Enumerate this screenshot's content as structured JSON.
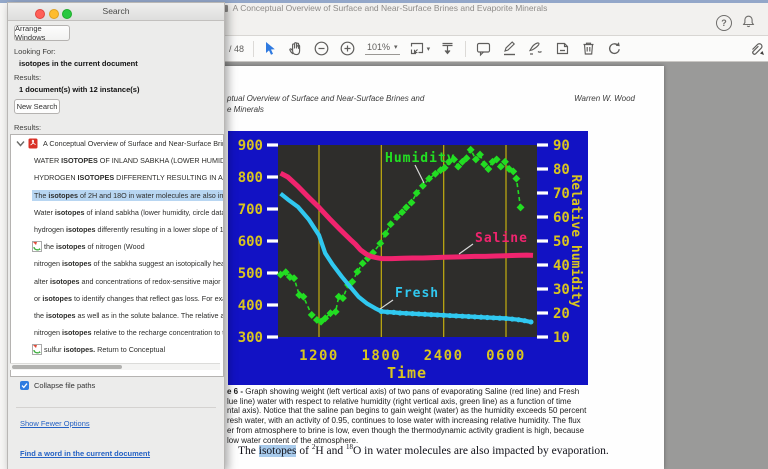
{
  "window": {
    "title": "A Conceptual Overview of Surface and Near-Surface Brines and Evaporite Minerals",
    "toolbar": {
      "page_indicator": "/ 48",
      "zoom_level": "101%"
    }
  },
  "search_panel": {
    "title": "Search",
    "arrange_button": "Arrange Windows",
    "looking_for_label": "Looking For:",
    "looking_for_value": "isotopes in the current document",
    "results_label": "Results:",
    "results_summary": "1 document(s) with 12 instance(s)",
    "new_search_button": "New Search",
    "results_list_label": "Results:",
    "document_result": "A Conceptual Overview of Surface and Near-Surface Brines and",
    "results": [
      {
        "pre": "WATER ",
        "match": "ISOTOPES",
        "post": " OF INLAND SABKHA (LOWER HUMIDIT"
      },
      {
        "pre": "HYDROGEN ",
        "match": "ISOTOPES",
        "post": " DIFFERENTLY RESULTING IN A LO"
      },
      {
        "pre": "The ",
        "match": "isotopes",
        "post": " of 2H and 18O in water molecules are also imp",
        "selected": true
      },
      {
        "pre": "Water ",
        "match": "isotopes",
        "post": " of inland sabkha (lower humidity, circle data"
      },
      {
        "pre": "hydrogen ",
        "match": "isotopes",
        "post": " differently resulting in a lower slope of 1.6"
      },
      {
        "pre": "the ",
        "match": "isotopes",
        "post": " of nitrogen (Wood"
      },
      {
        "pre": "nitrogen ",
        "match": "isotopes",
        "post": " of the sabkha suggest an isotopically heav"
      },
      {
        "pre": "alter ",
        "match": "isotopes",
        "post": " and concentrations of redox-sensitive major e"
      },
      {
        "pre": "or ",
        "match": "isotopes",
        "post": " to identify changes that reflect gas loss. For exa"
      },
      {
        "pre": "the ",
        "match": "isotopes",
        "post": " as well as in the solute balance. The relative am"
      },
      {
        "pre": "nitrogen ",
        "match": "isotopes",
        "post": " relative to the recharge concentration to th"
      },
      {
        "pre": "sulfur ",
        "match": "isotopes.",
        "post": " Return to Conceptual"
      }
    ],
    "collapse_checkbox_label": "Collapse file paths",
    "show_fewer_link": "Show Fewer Options",
    "find_word_link": "Find a word in the current document"
  },
  "document": {
    "header_left_line1": "ptual Overview of Surface and Near-Surface Brines and",
    "header_left_line2": "e Minerals",
    "header_right": "Warren W. Wood",
    "caption": {
      "line1_bold": "e 6 -",
      "line1_rest": " Graph showing weight (left vertical axis) of two pans of evaporating Saline (red line) and Fresh",
      "lines": [
        "lue line) water with respect to relative humidity (right vertical axis, green line) as a function of time",
        "ntal axis). Notice that the saline pan begins to gain weight (water) as the humidity exceeds 50 percent",
        "resh water, with an activity of 0.95, continues to lose water with increasing relative humidity. The flux",
        "er from atmosphere to brine is low, even though the thermodynamic activity gradient is high, because",
        "low water content of the atmosphere."
      ]
    },
    "body_line": {
      "pre": "The ",
      "highlight": "isotopes",
      "seg2": " of ",
      "sup1": "2",
      "seg3": "H and ",
      "sup2": "18",
      "seg4": "O in water molecules are also impacted by evaporation."
    }
  },
  "chart_data": {
    "type": "line",
    "title": "",
    "x_axis": {
      "label": "Time",
      "ticks": [
        "1200",
        "1800",
        "2400",
        "0600"
      ],
      "tick_hours": [
        4,
        10,
        16,
        22
      ],
      "x_unit": "hours since 08:00 (1200=4, 1800=10, 2400=16, 0600=22)",
      "grid": "vertical yellow lines at each labeled time"
    },
    "y_left": {
      "label": "",
      "ticks": [
        300,
        400,
        500,
        600,
        700,
        800,
        900
      ],
      "range": [
        300,
        900
      ]
    },
    "y_right": {
      "label": "Relative humidity",
      "ticks": [
        10,
        20,
        30,
        40,
        50,
        60,
        70,
        80,
        90
      ],
      "range": [
        10,
        90
      ]
    },
    "colors": {
      "background": "#1212c4",
      "plot": "#2e2d2b",
      "axis_text": "#d9c51f",
      "grid": "#b8a512",
      "tick": "#ffffff",
      "saline": "#f0246e",
      "fresh": "#30c8f0",
      "humidity": "#22dd22",
      "callout_line": "#d8d8d8"
    },
    "series": [
      {
        "name": "Saline",
        "axis": "left",
        "style": "thick-line",
        "points": [
          [
            0.3,
            812
          ],
          [
            1,
            800
          ],
          [
            2,
            770
          ],
          [
            3,
            737
          ],
          [
            4,
            705
          ],
          [
            5,
            670
          ],
          [
            6,
            637
          ],
          [
            7,
            605
          ],
          [
            7.5,
            590
          ],
          [
            8,
            572
          ],
          [
            8.5,
            560
          ],
          [
            9,
            552
          ],
          [
            9.5,
            548
          ],
          [
            10,
            545
          ],
          [
            11,
            545
          ],
          [
            12,
            546
          ],
          [
            13,
            547
          ],
          [
            14,
            547
          ],
          [
            15,
            548
          ],
          [
            16,
            549
          ],
          [
            17,
            550
          ],
          [
            18,
            551
          ],
          [
            19,
            552
          ],
          [
            20,
            552
          ],
          [
            21,
            553
          ],
          [
            22,
            554
          ],
          [
            23,
            555
          ],
          [
            24,
            556
          ],
          [
            24.6,
            555
          ]
        ]
      },
      {
        "name": "Fresh",
        "axis": "left",
        "style": "thick-line-with-dots",
        "points": [
          [
            0.3,
            748
          ],
          [
            1,
            730
          ],
          [
            2,
            706
          ],
          [
            3,
            668
          ],
          [
            4,
            618
          ],
          [
            4.6,
            562
          ],
          [
            5.3,
            527
          ],
          [
            6.2,
            488
          ],
          [
            7,
            457
          ],
          [
            7.8,
            426
          ],
          [
            8.6,
            405
          ],
          [
            9.4,
            390
          ],
          [
            10,
            380
          ],
          [
            10.6,
            378
          ],
          [
            11.2,
            377
          ],
          [
            11.8,
            375
          ],
          [
            12.4,
            374
          ],
          [
            13,
            373
          ],
          [
            13.6,
            372
          ],
          [
            14.2,
            371
          ],
          [
            14.8,
            370
          ],
          [
            15.4,
            369
          ],
          [
            16,
            368
          ],
          [
            16.6,
            367
          ],
          [
            17.2,
            366
          ],
          [
            17.8,
            365
          ],
          [
            18.4,
            364
          ],
          [
            19,
            363
          ],
          [
            19.6,
            362
          ],
          [
            20.2,
            361
          ],
          [
            20.8,
            360
          ],
          [
            21.4,
            359
          ],
          [
            22,
            358
          ],
          [
            22.6,
            356
          ],
          [
            23.2,
            354
          ],
          [
            23.8,
            351
          ],
          [
            24.4,
            347
          ]
        ]
      },
      {
        "name": "Humidity",
        "axis": "right",
        "style": "dashed-line-with-diamonds",
        "points": [
          [
            0.3,
            36
          ],
          [
            0.8,
            37
          ],
          [
            1.2,
            35
          ],
          [
            1.6,
            34.5
          ],
          [
            2.1,
            27.5
          ],
          [
            2.5,
            26.8
          ],
          [
            3.3,
            19.2
          ],
          [
            3.8,
            17.1
          ],
          [
            4.2,
            16.4
          ],
          [
            4.6,
            17.8
          ],
          [
            5.1,
            19.9
          ],
          [
            5.6,
            20.5
          ],
          [
            5.9,
            26.8
          ],
          [
            6.3,
            26.2
          ],
          [
            6.8,
            31.7
          ],
          [
            7.2,
            33
          ],
          [
            7.7,
            37.2
          ],
          [
            8.2,
            40.7
          ],
          [
            8.7,
            42.8
          ],
          [
            9.2,
            45.1
          ],
          [
            9.9,
            49
          ],
          [
            10.4,
            53
          ],
          [
            10.9,
            57
          ],
          [
            11.5,
            60
          ],
          [
            12,
            62
          ],
          [
            12.4,
            64
          ],
          [
            12.9,
            66
          ],
          [
            13.4,
            70
          ],
          [
            14,
            73
          ],
          [
            14.6,
            76
          ],
          [
            15.2,
            78
          ],
          [
            15.7,
            79.5
          ],
          [
            16.1,
            80.5
          ],
          [
            16.5,
            83
          ],
          [
            17,
            84
          ],
          [
            17.4,
            81
          ],
          [
            17.8,
            83
          ],
          [
            18.2,
            84.5
          ],
          [
            18.6,
            88
          ],
          [
            19.1,
            84
          ],
          [
            19.5,
            86
          ],
          [
            19.9,
            82
          ],
          [
            20.3,
            80
          ],
          [
            20.7,
            83
          ],
          [
            21.1,
            84
          ],
          [
            21.5,
            81
          ],
          [
            21.9,
            83
          ],
          [
            22.3,
            80
          ],
          [
            22.7,
            79
          ],
          [
            23,
            76
          ],
          [
            23.4,
            64
          ]
        ]
      }
    ],
    "annotations": [
      {
        "text": "Humidity",
        "color": "#22e022"
      },
      {
        "text": "Saline",
        "color": "#f0246e"
      },
      {
        "text": "Fresh",
        "color": "#30c8f0"
      }
    ]
  }
}
